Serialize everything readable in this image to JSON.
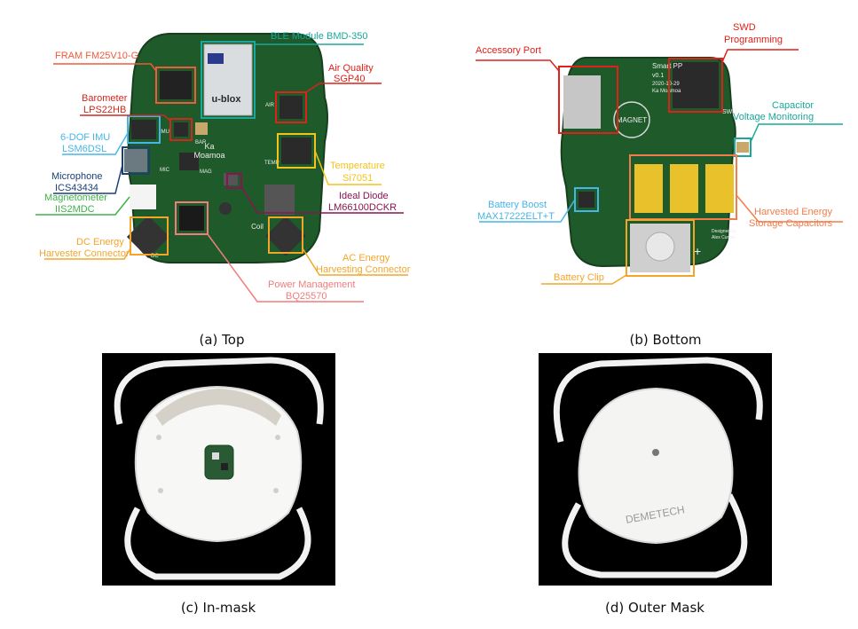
{
  "figure": {
    "panels": [
      {
        "id": "a",
        "caption": "(a) Top",
        "callouts": [
          {
            "key": "fram",
            "lines": [
              "FRAM FM25V10-G"
            ],
            "color": "#f05a3c"
          },
          {
            "key": "ble",
            "lines": [
              "BLE Module BMD-350"
            ],
            "color": "#1aa89a"
          },
          {
            "key": "air",
            "lines": [
              "Air Quality",
              "SGP40"
            ],
            "color": "#e0201a"
          },
          {
            "key": "baro",
            "lines": [
              "Barometer",
              "LPS22HB"
            ],
            "color": "#d0281e"
          },
          {
            "key": "imu",
            "lines": [
              "6-DOF IMU",
              "LSM6DSL"
            ],
            "color": "#46b6e8"
          },
          {
            "key": "temp",
            "lines": [
              "Temperature",
              "Si7051"
            ],
            "color": "#f2c31d"
          },
          {
            "key": "mic",
            "lines": [
              "Microphone",
              "ICS43434"
            ],
            "color": "#1c3f76"
          },
          {
            "key": "mag",
            "lines": [
              "Magnetometer",
              "IIS2MDC"
            ],
            "color": "#3fb14a"
          },
          {
            "key": "diode",
            "lines": [
              "Ideal Diode",
              "LM66100DCKR"
            ],
            "color": "#8a1452"
          },
          {
            "key": "dc",
            "lines": [
              "DC Energy",
              "Harvester Connector"
            ],
            "color": "#f3a52a"
          },
          {
            "key": "ac",
            "lines": [
              "AC Energy",
              "Harvesting Connector"
            ],
            "color": "#f3a52a"
          },
          {
            "key": "pm",
            "lines": [
              "Power Management",
              "BQ25570"
            ],
            "color": "#f27c7c"
          }
        ],
        "silkscreen": {
          "brand": "u-blox",
          "name1": "Ka",
          "name2": "Moamoa",
          "imu": "IMU",
          "bar": "BAR",
          "mic": "MIC",
          "mag": "MAG",
          "temp": "TEMP",
          "air": "AIR",
          "coil": "Coil",
          "dc": "DC"
        }
      },
      {
        "id": "b",
        "caption": "(b) Bottom",
        "callouts": [
          {
            "key": "swd",
            "lines": [
              "SWD",
              "Programming"
            ],
            "color": "#e0201a"
          },
          {
            "key": "acc",
            "lines": [
              "Accessory Port"
            ],
            "color": "#e0201a"
          },
          {
            "key": "cap",
            "lines": [
              "Capacitor",
              "Voltage Monitoring"
            ],
            "color": "#1aa89a"
          },
          {
            "key": "boost",
            "lines": [
              "Battery Boost",
              "MAX17222ELT+T"
            ],
            "color": "#46b6e8"
          },
          {
            "key": "harv",
            "lines": [
              "Harvested Energy",
              "Storage Capacitors"
            ],
            "color": "#f27c4c"
          },
          {
            "key": "clip",
            "lines": [
              "Battery Clip"
            ],
            "color": "#f3a52a"
          }
        ],
        "silkscreen": {
          "title1": "Smart PP",
          "title2": "v0.1",
          "date": "2020-10-29",
          "author": "Ka Moamoa",
          "magnet": "MAGNET",
          "swd": "SWD",
          "designed1": "Designed by",
          "designed2": "Alex Curtiss",
          "plus": "+"
        }
      },
      {
        "id": "c",
        "caption": "(c) In-mask"
      },
      {
        "id": "d",
        "caption": "(d) Outer Mask",
        "mask_print": "DEMETECH"
      }
    ]
  }
}
